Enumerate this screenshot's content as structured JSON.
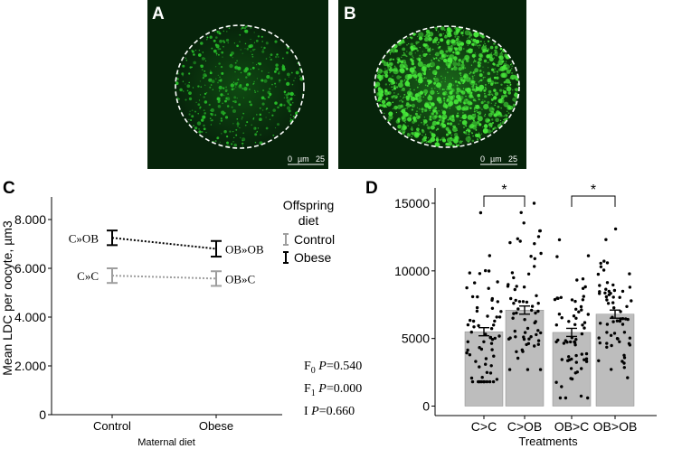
{
  "panels": {
    "a": {
      "letter": "A",
      "scale_zero": "0",
      "scale_unit": "µm",
      "scale_value": "25",
      "fluorescence_color": "#29c22b",
      "dot_density": 420
    },
    "b": {
      "letter": "B",
      "scale_zero": "0",
      "scale_unit": "µm",
      "scale_value": "25",
      "fluorescence_color": "#47e83a",
      "dot_density": 1200
    },
    "c": {
      "letter": "C"
    },
    "d": {
      "letter": "D"
    }
  },
  "chart_data": [
    {
      "type": "line",
      "panel": "C",
      "title": "",
      "xlabel": "Maternal diet",
      "ylabel": "Mean LDC per oocyte, µm3",
      "categories": [
        "Control",
        "Obese"
      ],
      "ylim": [
        0,
        8000
      ],
      "yticks": [
        0,
        2000,
        4000,
        6000,
        8000
      ],
      "ytick_labels": [
        "0",
        "2.000",
        "4.000",
        "6.000",
        "8.000"
      ],
      "legend_title": "Offspring diet",
      "legend_position": "right",
      "series": [
        {
          "name": "Obese",
          "color": "#000000",
          "values": [
            7250,
            6800
          ],
          "errors": [
            300,
            320
          ],
          "point_labels": [
            "C»OB",
            "OB»OB"
          ]
        },
        {
          "name": "Control",
          "color": "#9e9e9e",
          "values": [
            5700,
            5580
          ],
          "errors": [
            300,
            300
          ],
          "point_labels": [
            "C»C",
            "OB»C"
          ]
        }
      ],
      "stats": [
        {
          "prefix": "F",
          "sub": "0",
          "label": " P",
          "value": "=0.540"
        },
        {
          "prefix": "F",
          "sub": "1",
          "label": " P",
          "value": "=0.000"
        },
        {
          "prefix": "I",
          "sub": "",
          "label": " P",
          "value": "=0.660"
        }
      ],
      "grid": false
    },
    {
      "type": "bar",
      "panel": "D",
      "title": "",
      "xlabel": "Treatments",
      "ylabel": "",
      "categories": [
        "C>C",
        "C>OB",
        "OB>C",
        "OB>OB"
      ],
      "values": [
        5500,
        7100,
        5450,
        6800
      ],
      "errors": [
        300,
        300,
        300,
        300
      ],
      "ylim": [
        -400,
        15600
      ],
      "yticks": [
        0,
        5000,
        10000,
        15000
      ],
      "bar_color": "#bdbdbd",
      "point_color": "#000000",
      "points_per_group": 66,
      "point_spread": [
        [
          1800,
          14300
        ],
        [
          2700,
          15000
        ],
        [
          600,
          12300
        ],
        [
          2100,
          13100
        ]
      ],
      "significance": [
        {
          "from": 0,
          "to": 1,
          "label": "*"
        },
        {
          "from": 2,
          "to": 3,
          "label": "*"
        }
      ],
      "grid": false
    }
  ]
}
